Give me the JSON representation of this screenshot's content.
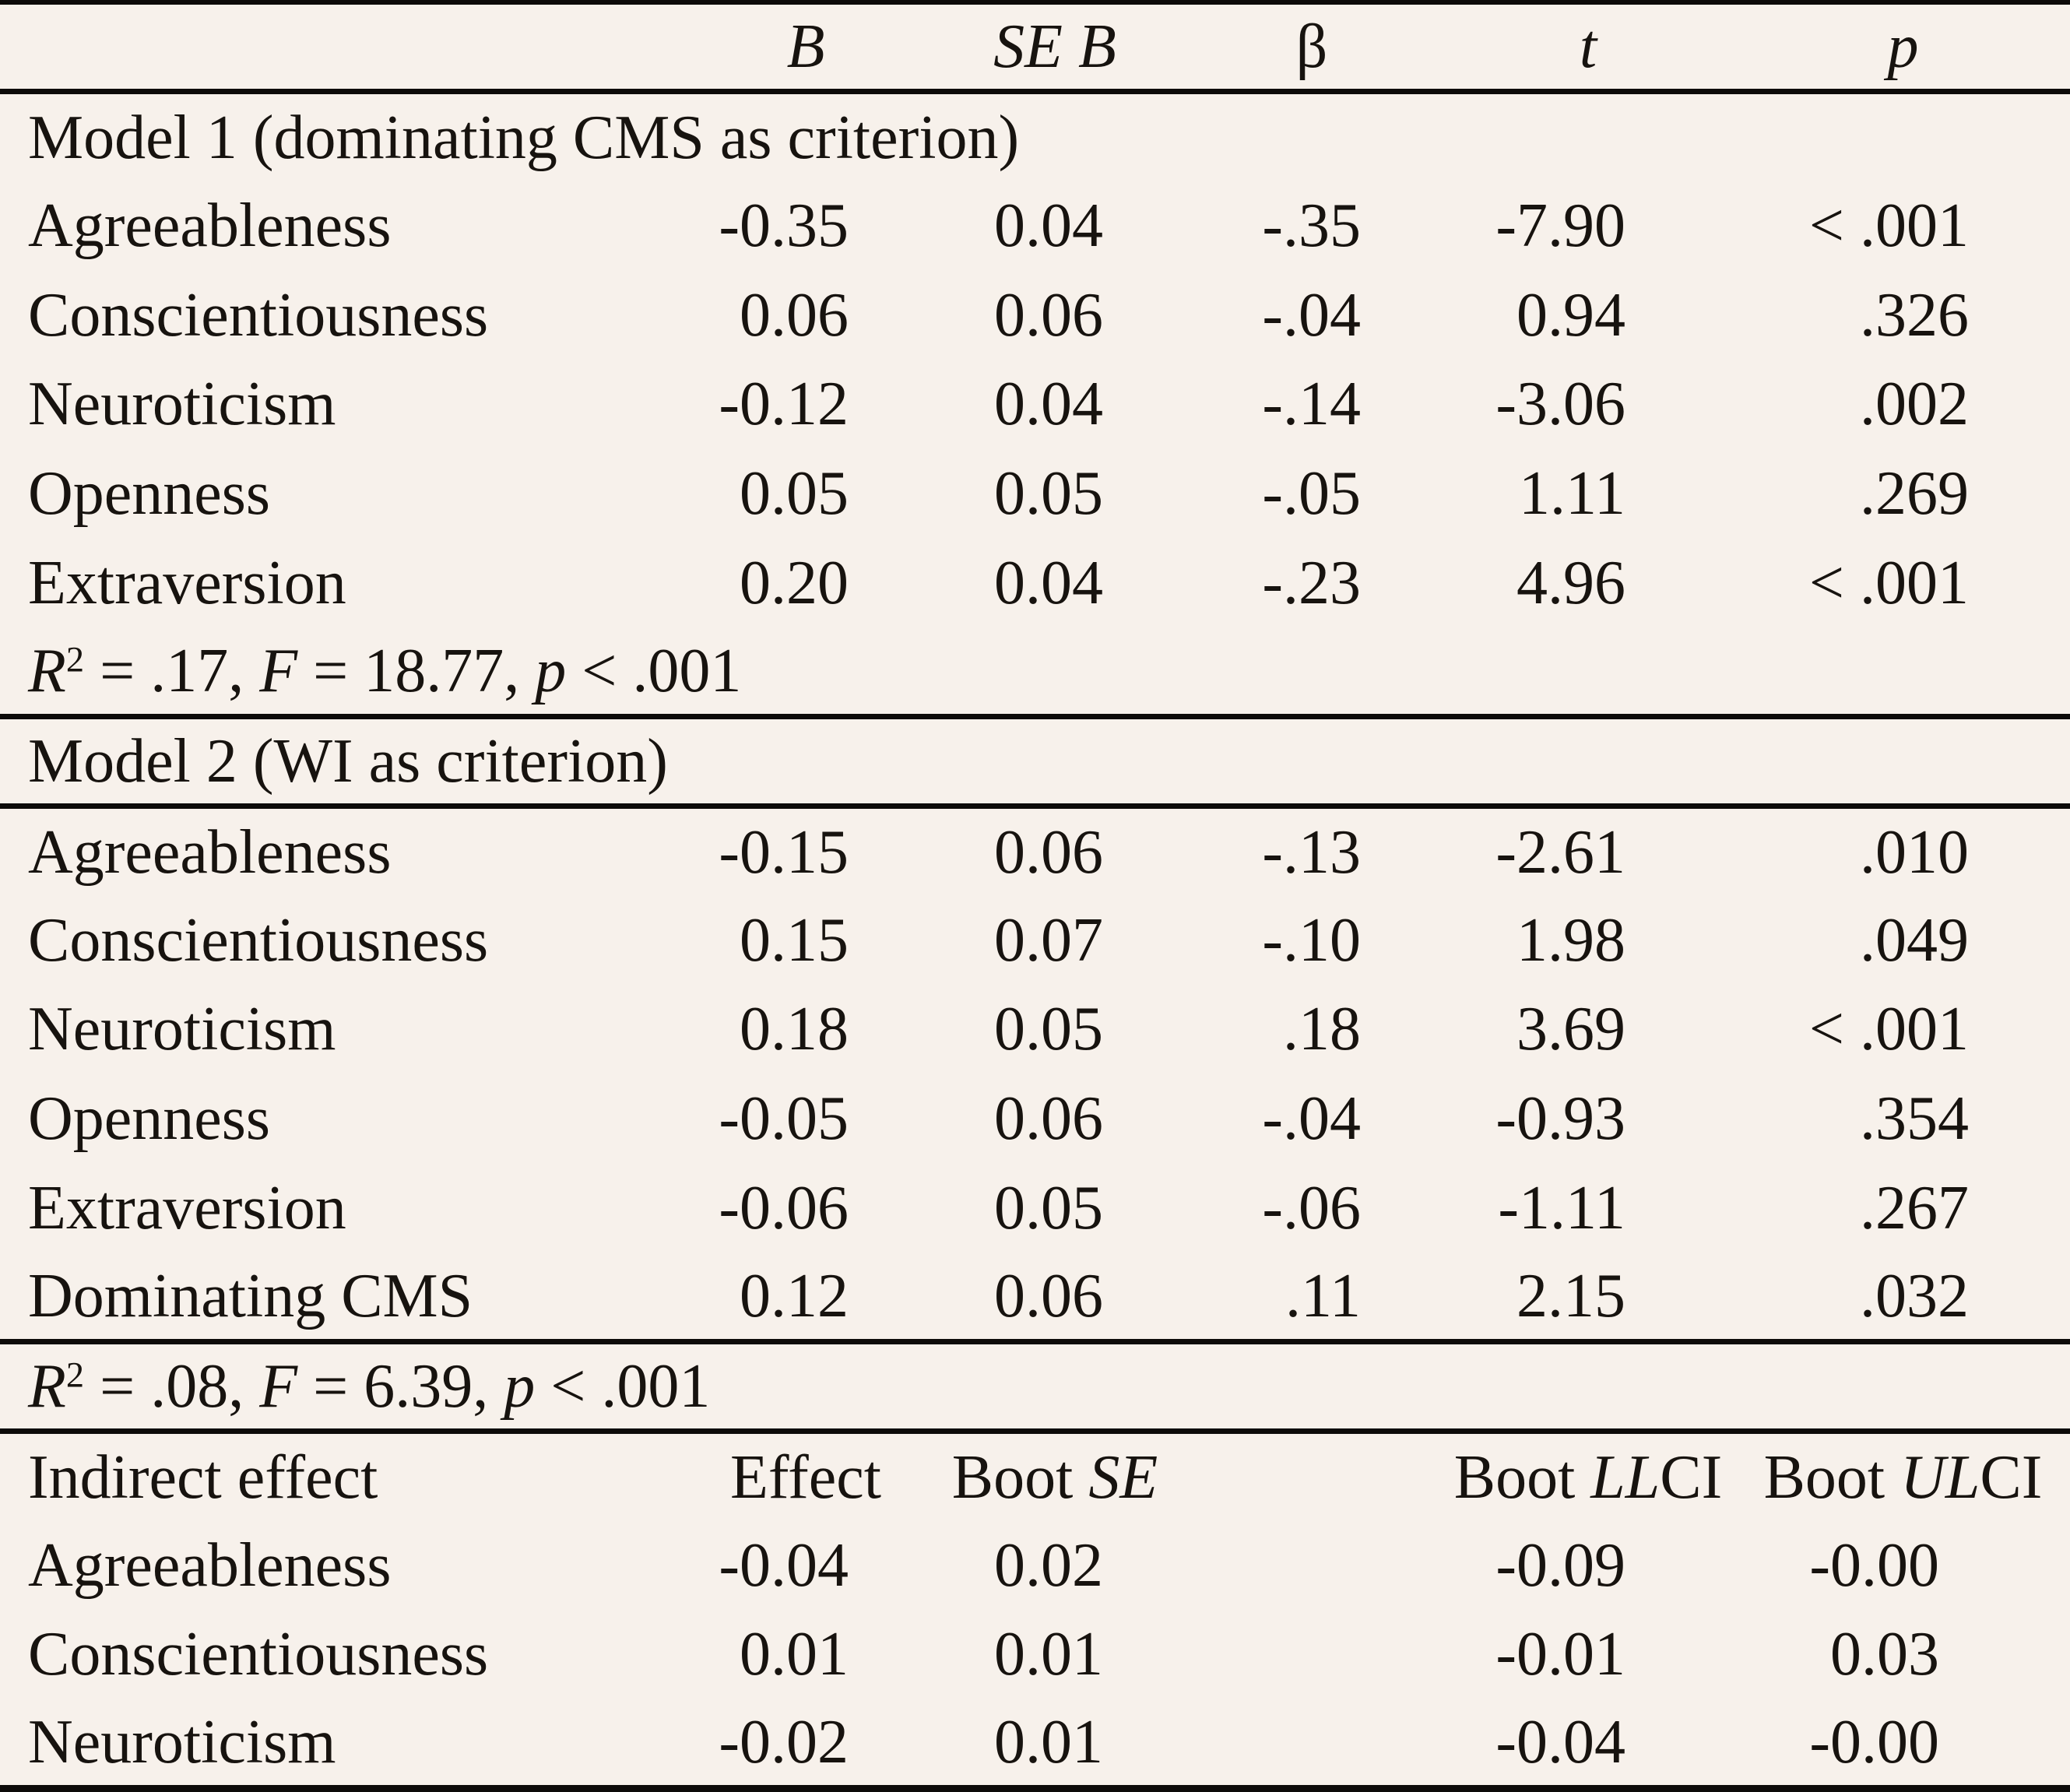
{
  "page": {
    "background": "#f7f1eb",
    "text_color": "#17130f",
    "rule_color": "#0d0b09"
  },
  "table": {
    "top_header": {
      "blank": "",
      "b": "B",
      "se_b": "SE B",
      "beta": "β",
      "t": "t",
      "p": "p"
    },
    "model1": {
      "title": "Model 1 (dominating CMS as criterion)",
      "rows": [
        {
          "label": "Agreeableness",
          "b": "-0.35",
          "se_b": "0.04",
          "beta": "-.35",
          "t": "-7.90",
          "p": "< .001"
        },
        {
          "label": "Conscientiousness",
          "b": "0.06",
          "se_b": "0.06",
          "beta": "-.04",
          "t": "0.94",
          "p": ".326"
        },
        {
          "label": "Neuroticism",
          "b": "-0.12",
          "se_b": "0.04",
          "beta": "-.14",
          "t": "-3.06",
          "p": ".002"
        },
        {
          "label": "Openness",
          "b": "0.05",
          "se_b": "0.05",
          "beta": "-.05",
          "t": "1.11",
          "p": ".269"
        },
        {
          "label": "Extraversion",
          "b": "0.20",
          "se_b": "0.04",
          "beta": "-.23",
          "t": "4.96",
          "p": "< .001"
        }
      ],
      "stats": {
        "text": "R² = .17, F = 18.77, p < .001",
        "runs": [
          {
            "t": "R",
            "i": true
          },
          {
            "t": "2",
            "sup": true
          },
          {
            "t": " = .17, "
          },
          {
            "t": "F",
            "i": true
          },
          {
            "t": " = 18.77, "
          },
          {
            "t": "p",
            "i": true
          },
          {
            "t": " < .001"
          }
        ]
      }
    },
    "model2": {
      "title": "Model 2 (WI as criterion)",
      "rows": [
        {
          "label": "Agreeableness",
          "b": "-0.15",
          "se_b": "0.06",
          "beta": "-.13",
          "t": "-2.61",
          "p": ".010"
        },
        {
          "label": "Conscientiousness",
          "b": "0.15",
          "se_b": "0.07",
          "beta": "-.10",
          "t": "1.98",
          "p": ".049"
        },
        {
          "label": "Neuroticism",
          "b": "0.18",
          "se_b": "0.05",
          "beta": ".18",
          "t": "3.69",
          "p": "< .001"
        },
        {
          "label": "Openness",
          "b": "-0.05",
          "se_b": "0.06",
          "beta": "-.04",
          "t": "-0.93",
          "p": ".354"
        },
        {
          "label": "Extraversion",
          "b": "-0.06",
          "se_b": "0.05",
          "beta": "-.06",
          "t": "-1.11",
          "p": ".267"
        },
        {
          "label": "Dominating CMS",
          "b": "0.12",
          "se_b": "0.06",
          "beta": ".11",
          "t": "2.15",
          "p": ".032"
        }
      ],
      "stats": {
        "text": "R² = .08, F = 6.39, p < .001",
        "runs": [
          {
            "t": "R",
            "i": true
          },
          {
            "t": "2",
            "sup": true
          },
          {
            "t": " = .08, "
          },
          {
            "t": "F",
            "i": true
          },
          {
            "t": " = 6.39, "
          },
          {
            "t": "p",
            "i": true
          },
          {
            "t": " < .001"
          }
        ]
      }
    },
    "indirect": {
      "label": "Indirect effect",
      "effect_header": "Effect",
      "boot_se_header": {
        "text": "Boot SE",
        "runs": [
          {
            "t": "Boot "
          },
          {
            "t": "SE",
            "i": true
          }
        ]
      },
      "llci_header": {
        "text": "Boot LLCI",
        "runs": [
          {
            "t": "Boot "
          },
          {
            "t": "LL",
            "i": true
          },
          {
            "t": "CI"
          }
        ]
      },
      "ulci_header": {
        "text": "Boot ULCI",
        "runs": [
          {
            "t": "Boot "
          },
          {
            "t": "UL",
            "i": true
          },
          {
            "t": "CI"
          }
        ]
      },
      "rows": [
        {
          "label": "Agreeableness",
          "effect": "-0.04",
          "boot_se": "0.02",
          "llci": "-0.09",
          "ulci": "-0.00"
        },
        {
          "label": "Conscientiousness",
          "effect": "0.01",
          "boot_se": "0.01",
          "llci": "-0.01",
          "ulci": "0.03"
        },
        {
          "label": "Neuroticism",
          "effect": "-0.02",
          "boot_se": "0.01",
          "llci": "-0.04",
          "ulci": "-0.00"
        }
      ]
    }
  }
}
